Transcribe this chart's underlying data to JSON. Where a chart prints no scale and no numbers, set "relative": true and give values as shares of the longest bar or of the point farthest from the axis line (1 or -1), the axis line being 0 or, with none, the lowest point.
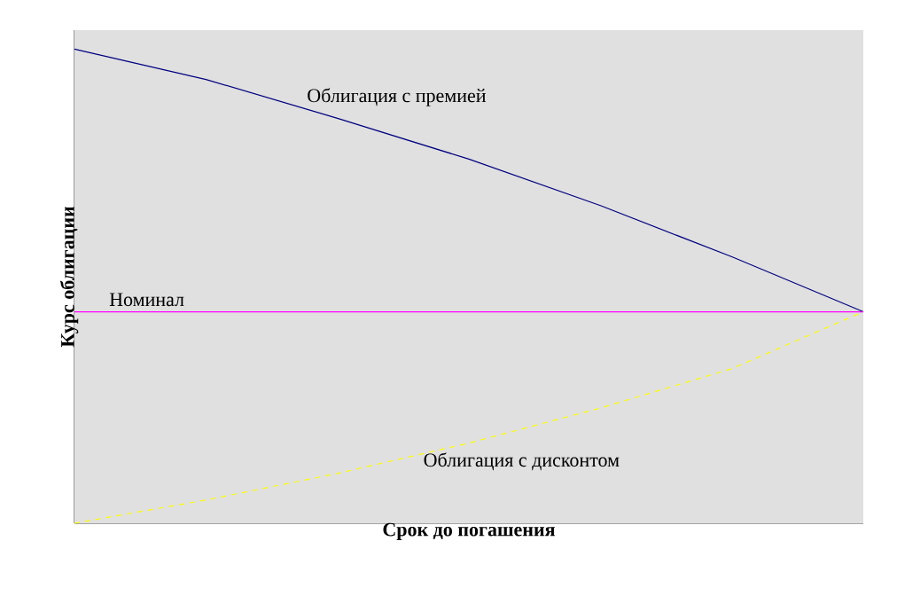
{
  "chart_data": {
    "type": "line",
    "relative": true,
    "xlabel": "Срок до погашения",
    "ylabel": "Курс облигации",
    "categories": [
      null,
      null,
      null,
      null,
      null,
      null,
      null
    ],
    "legend": false,
    "series": [
      {
        "name": "Облигация с премией",
        "color": "#000080",
        "line_style": "solid",
        "values": [
          1,
          0.936,
          0.854,
          0.768,
          0.67,
          0.562,
          0.446
        ]
      },
      {
        "name": "Номинал",
        "color": "#ff00ff",
        "line_style": "solid",
        "values": [
          0.446,
          0.446,
          0.446,
          0.446,
          0.446,
          0.446,
          0.446
        ]
      },
      {
        "name": "Облигация с дисконтом",
        "color": "#ffff00",
        "line_style": "dashed",
        "values": [
          0,
          0.049,
          0.105,
          0.169,
          0.243,
          0.326,
          0.446
        ]
      }
    ]
  }
}
